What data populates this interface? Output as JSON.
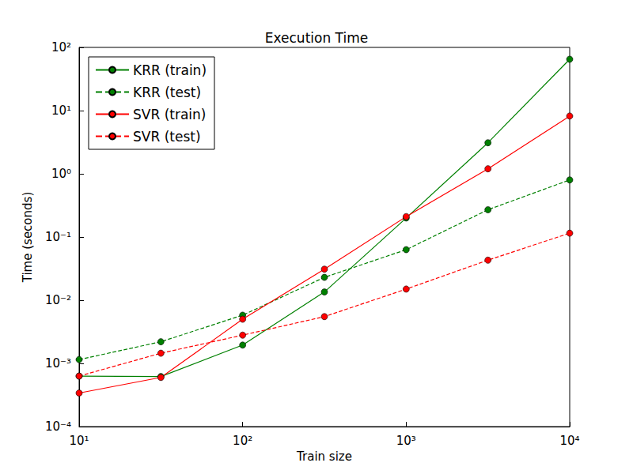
{
  "chart_data": {
    "type": "line",
    "title": "Execution Time",
    "xlabel": "Train size",
    "ylabel": "Time (seconds)",
    "log": true,
    "grid": false,
    "legend": "top-left",
    "x": [
      10,
      31.62,
      100,
      316.23,
      1000,
      3162.28,
      10000
    ],
    "xlim": [
      10,
      10000
    ],
    "xticks": [
      {
        "value": 10,
        "label": "10¹"
      },
      {
        "value": 100,
        "label": "10²"
      },
      {
        "value": 1000,
        "label": "10³"
      },
      {
        "value": 10000,
        "label": "10⁴"
      }
    ],
    "ylim": [
      0.0001,
      100
    ],
    "yticks": [
      {
        "value": 0.0001,
        "label": "10⁻⁴"
      },
      {
        "value": 0.001,
        "label": "10⁻³"
      },
      {
        "value": 0.01,
        "label": "10⁻²"
      },
      {
        "value": 0.1,
        "label": "10⁻¹"
      },
      {
        "value": 1,
        "label": "10⁰"
      },
      {
        "value": 10,
        "label": "10¹"
      },
      {
        "value": 100,
        "label": "10²"
      }
    ],
    "series": [
      {
        "name": "KRR (train)",
        "color": "#008000",
        "line_style": "solid",
        "marker": "circle",
        "values": [
          0.00063,
          0.00062,
          0.00195,
          0.0135,
          0.2,
          3.1,
          65
        ]
      },
      {
        "name": "KRR (test)",
        "color": "#008000",
        "line_style": "dashed",
        "marker": "circle",
        "values": [
          0.00115,
          0.0022,
          0.0058,
          0.023,
          0.063,
          0.27,
          0.8
        ]
      },
      {
        "name": "SVR (train)",
        "color": "#ff0000",
        "line_style": "solid",
        "marker": "circle",
        "values": [
          0.00034,
          0.0006,
          0.005,
          0.031,
          0.21,
          1.2,
          8.2
        ]
      },
      {
        "name": "SVR (test)",
        "color": "#ff0000",
        "line_style": "dashed",
        "marker": "circle",
        "values": [
          0.00063,
          0.00145,
          0.0028,
          0.0055,
          0.015,
          0.043,
          0.115
        ]
      }
    ]
  }
}
